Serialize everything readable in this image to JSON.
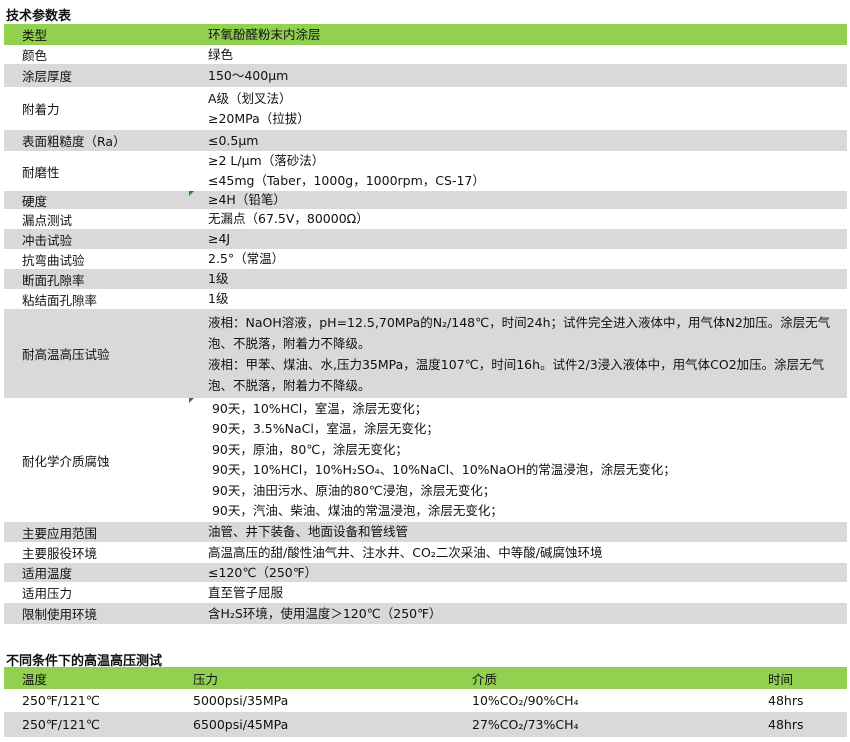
{
  "section1_title": "技术参数表",
  "params": [
    {
      "label": "类型",
      "lines": [
        "环氧酚醛粉末内涂层"
      ],
      "style": "green"
    },
    {
      "label": "颜色",
      "lines": [
        "绿色"
      ],
      "style": "white"
    },
    {
      "label": "涂层厚度",
      "lines": [
        "150～400μm"
      ],
      "style": "gray"
    },
    {
      "label": "附着力",
      "lines": [
        "A级（划叉法）",
        "≥20MPa（拉拔）"
      ],
      "style": "white"
    },
    {
      "label": "表面粗糙度（Ra）",
      "lines": [
        "≤0.5μm"
      ],
      "style": "gray"
    },
    {
      "label": "耐磨性",
      "lines": [
        "≥2 L/μm（落砂法）",
        "≤45mg（Taber，1000g，1000rpm，CS-17）"
      ],
      "style": "white"
    },
    {
      "label": "硬度",
      "lines": [
        "≥4H（铅笔）"
      ],
      "style": "gray"
    },
    {
      "label": "漏点测试",
      "lines": [
        "无漏点（67.5V，80000Ω）"
      ],
      "style": "white"
    },
    {
      "label": "冲击试验",
      "lines": [
        "≥4J"
      ],
      "style": "gray"
    },
    {
      "label": "抗弯曲试验",
      "lines": [
        "2.5°（常温）"
      ],
      "style": "white"
    },
    {
      "label": "断面孔隙率",
      "lines": [
        "1级"
      ],
      "style": "gray"
    },
    {
      "label": "粘结面孔隙率",
      "lines": [
        "1级"
      ],
      "style": "white"
    },
    {
      "label": "耐高温高压试验",
      "lines": [
        "液相：NaOH溶液，pH=12.5,70MPa的N₂/148℃，时间24h；试件完全进入液体中，用气体N2加压。涂层无气泡、不脱落，附着力不降级。",
        "液相：甲苯、煤油、水,压力35MPa，温度107℃，时间16h。试件2/3浸入液体中，用气体CO2加压。涂层无气泡、不脱落，附着力不降级。"
      ],
      "style": "gray"
    },
    {
      "label": "耐化学介质腐蚀",
      "lines": [
        " 90天，10%HCl，室温，涂层无变化；",
        " 90天，3.5%NaCl，室温，涂层无变化；",
        " 90天，原油，80℃，涂层无变化；",
        " 90天，10%HCl，10%H₂SO₄、10%NaCl、10%NaOH的常温浸泡，涂层无变化；",
        " 90天，油田污水、原油的80℃浸泡，涂层无变化；",
        " 90天，汽油、柴油、煤油的常温浸泡，涂层无变化；"
      ],
      "style": "white"
    },
    {
      "label": "主要应用范围",
      "lines": [
        "油管、井下装备、地面设备和管线管"
      ],
      "style": "gray"
    },
    {
      "label": "主要服役环境",
      "lines": [
        "高温高压的甜/酸性油气井、注水井、CO₂二次采油、中等酸/碱腐蚀环境"
      ],
      "style": "white"
    },
    {
      "label": "适用温度",
      "lines": [
        "≤120℃（250℉）"
      ],
      "style": "gray"
    },
    {
      "label": "适用压力",
      "lines": [
        "直至管子屈服"
      ],
      "style": "white"
    },
    {
      "label": "限制使用环境",
      "lines": [
        "含H₂S环境，使用温度＞120℃（250℉）"
      ],
      "style": "gray"
    }
  ],
  "section2_title": "不同条件下的高温高压测试",
  "hpht": {
    "headers": [
      "温度",
      "压力",
      "介质",
      "时间"
    ],
    "rows": [
      [
        "250℉/121℃",
        "5000psi/35MPa",
        "10%CO₂/90%CH₄",
        "48hrs"
      ],
      [
        "250℉/121℃",
        "6500psi/45MPa",
        "27%CO₂/73%CH₄",
        "48hrs"
      ]
    ]
  },
  "colors": {
    "header_green": "#92d050",
    "row_gray": "#d9d9d9"
  }
}
